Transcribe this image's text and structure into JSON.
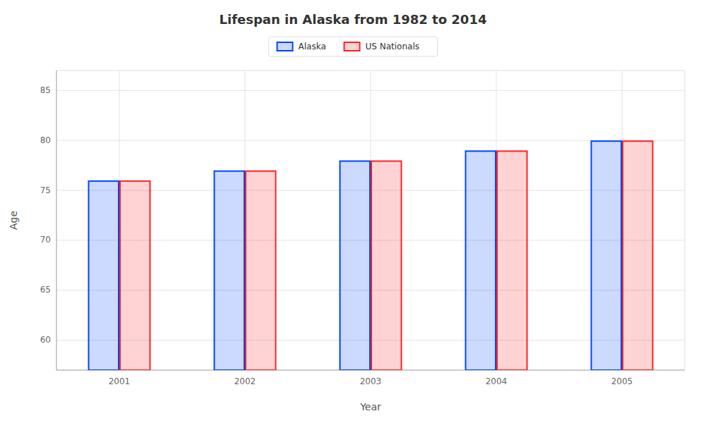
{
  "chart_data": {
    "type": "bar",
    "title": "Lifespan in Alaska from 1982 to 2014",
    "xlabel": "Year",
    "ylabel": "Age",
    "categories": [
      "2001",
      "2002",
      "2003",
      "2004",
      "2005"
    ],
    "series": [
      {
        "name": "Alaska",
        "color": "#0044ff",
        "values": [
          76.0,
          77.0,
          78.0,
          79.0,
          80.0
        ]
      },
      {
        "name": "US Nationals",
        "color": "#ff2222",
        "values": [
          76.0,
          77.0,
          78.0,
          79.0,
          80.0
        ]
      }
    ],
    "ylim": [
      57,
      87
    ],
    "yticks": [
      60,
      65,
      70,
      75,
      80,
      85
    ],
    "grid": true,
    "legend": "top"
  }
}
